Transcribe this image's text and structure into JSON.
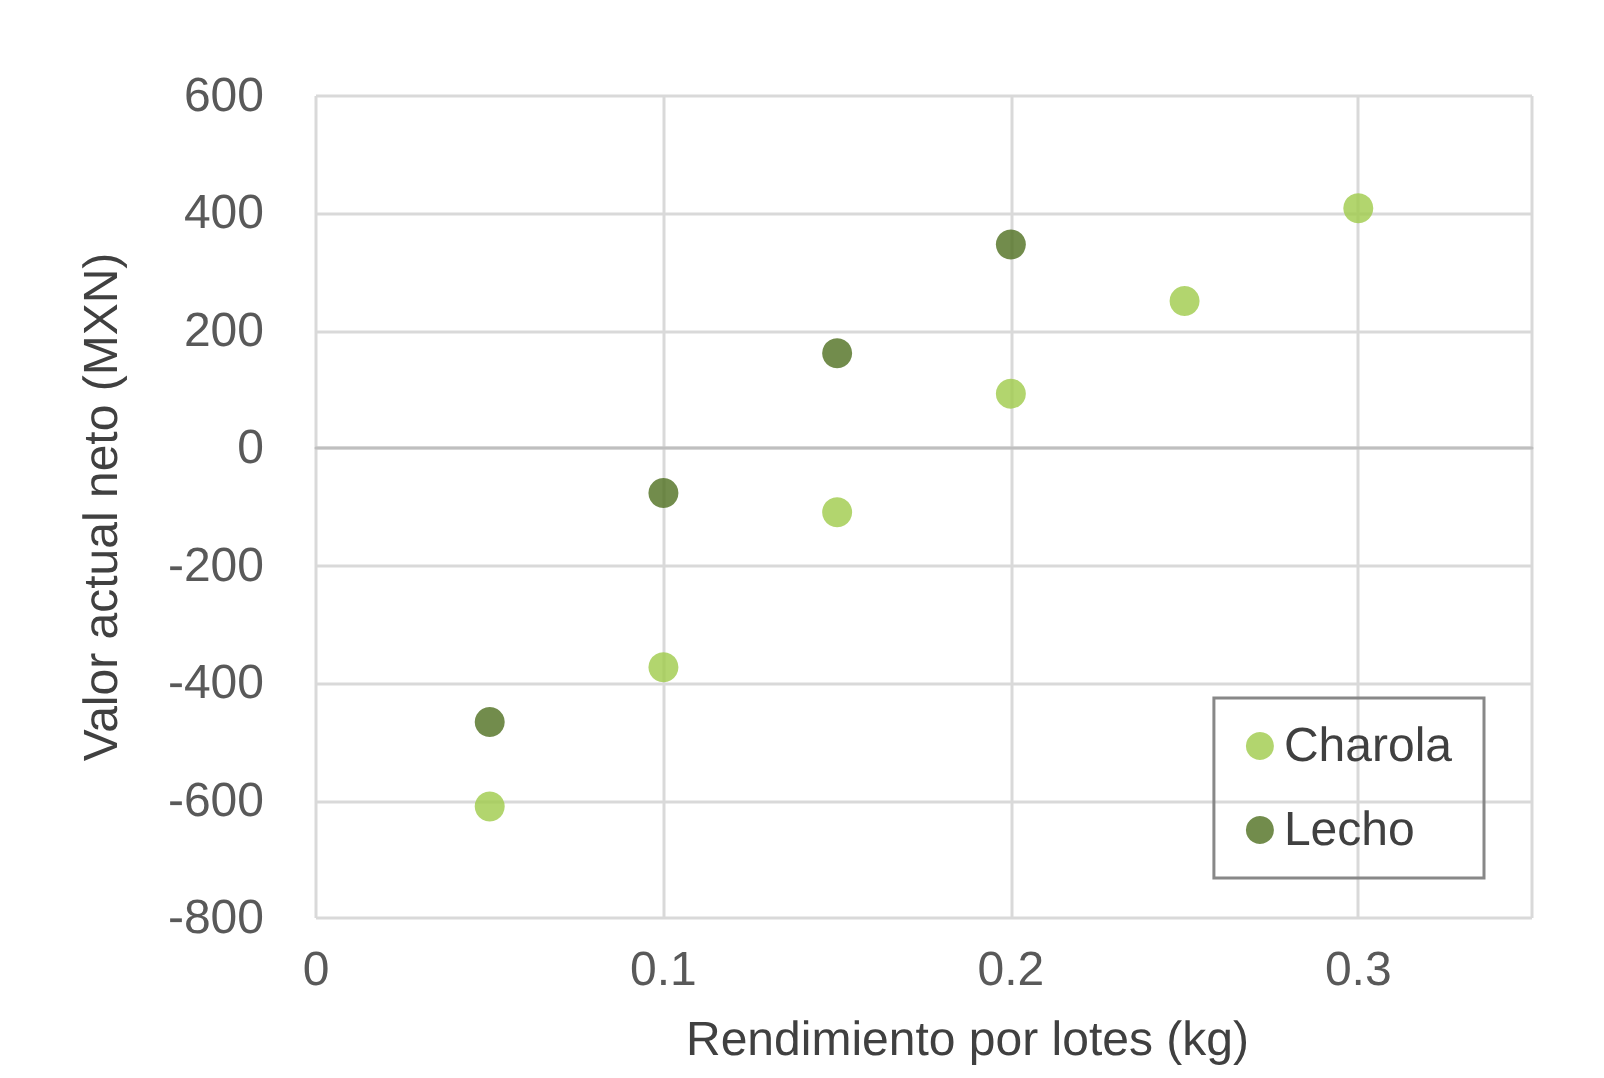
{
  "chart_data": {
    "type": "scatter",
    "xlabel": "Rendimiento por lotes (kg)",
    "ylabel": "Valor actual neto (MXN)",
    "series": [
      {
        "name": "Charola",
        "color": "#9fcb4a",
        "x": [
          0.05,
          0.1,
          0.15,
          0.2,
          0.25,
          0.3
        ],
        "values": [
          -610,
          -373,
          -109,
          93,
          251,
          409
        ]
      },
      {
        "name": "Lecho",
        "color": "#4f6f1f",
        "x": [
          0.05,
          0.1,
          0.15,
          0.2
        ],
        "values": [
          -466,
          -76,
          162,
          347
        ]
      }
    ],
    "xlim": [
      0,
      0.35
    ],
    "xticks": [
      0,
      0.1,
      0.2,
      0.3
    ],
    "ylim": [
      -800,
      600
    ],
    "yticks": [
      -800,
      -600,
      -400,
      -200,
      0,
      200,
      400,
      600
    ],
    "grid": true,
    "legend": "bottom right",
    "marker": "circle"
  }
}
